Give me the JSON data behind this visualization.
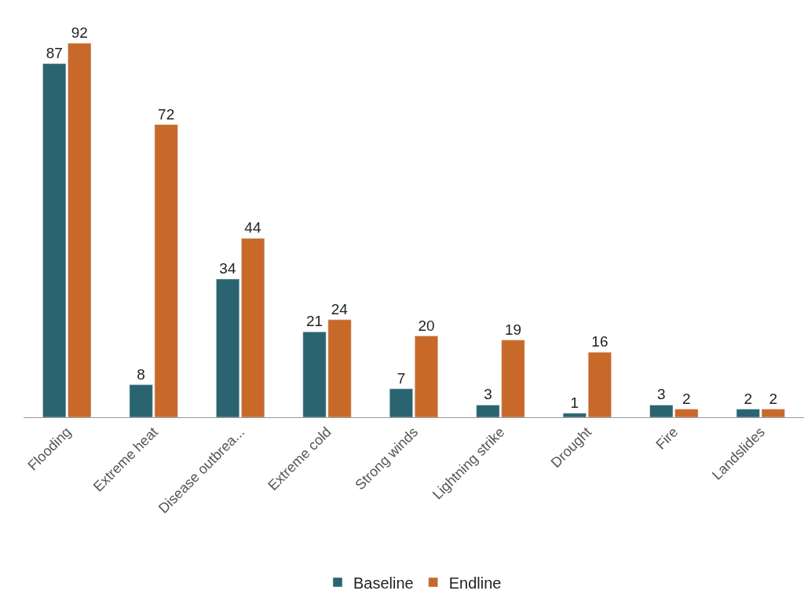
{
  "chart_data": {
    "type": "bar",
    "categories": [
      "Flooding",
      "Extreme heat",
      "Disease outbrea...",
      "Extreme cold",
      "Strong winds",
      "Lightning strike",
      "Drought",
      "Fire",
      "Landslides"
    ],
    "series": [
      {
        "name": "Baseline",
        "color": "#2a6470",
        "values": [
          87,
          8,
          34,
          21,
          7,
          3,
          1,
          3,
          2
        ]
      },
      {
        "name": "Endline",
        "color": "#c8692a",
        "values": [
          92,
          72,
          44,
          24,
          20,
          19,
          16,
          2,
          2
        ]
      }
    ],
    "tick_labels": "x",
    "legend": "bottom",
    "data_labels": true
  }
}
